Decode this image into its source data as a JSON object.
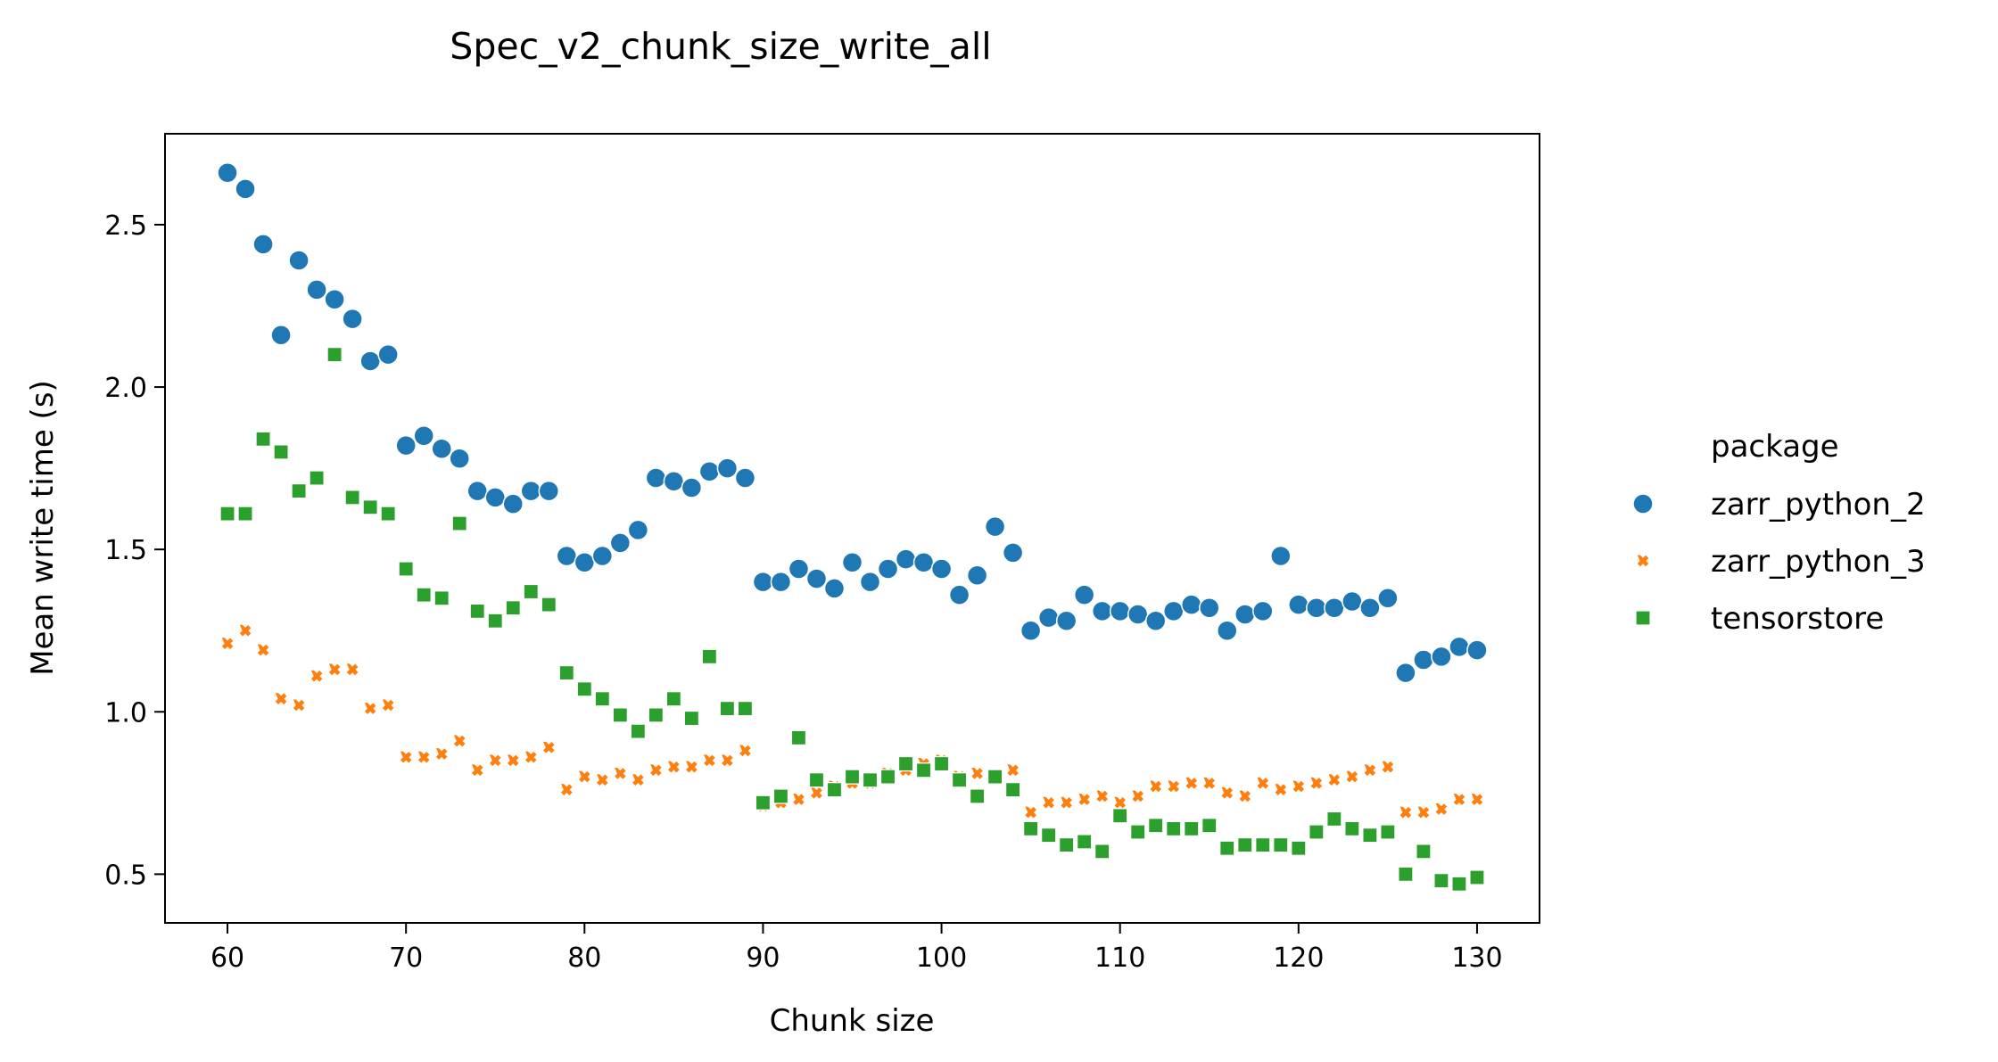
{
  "chart_data": {
    "type": "scatter",
    "title": "Spec_v2_chunk_size_write_all",
    "xlabel": "Chunk size",
    "ylabel": "Mean write time (s)",
    "xlim": [
      56.5,
      133.5
    ],
    "ylim": [
      0.35,
      2.78
    ],
    "xticks": [
      60,
      70,
      80,
      90,
      100,
      110,
      120,
      130
    ],
    "yticks": [
      0.5,
      1.0,
      1.5,
      2.0,
      2.5
    ],
    "grid": false,
    "legend": {
      "title": "package",
      "placement": "right"
    },
    "x": [
      60,
      61,
      62,
      63,
      64,
      65,
      66,
      67,
      68,
      69,
      70,
      71,
      72,
      73,
      74,
      75,
      76,
      77,
      78,
      79,
      80,
      81,
      82,
      83,
      84,
      85,
      86,
      87,
      88,
      89,
      90,
      91,
      92,
      93,
      94,
      95,
      96,
      97,
      98,
      99,
      100,
      101,
      102,
      103,
      104,
      105,
      106,
      107,
      108,
      109,
      110,
      111,
      112,
      113,
      114,
      115,
      116,
      117,
      118,
      119,
      120,
      121,
      122,
      123,
      124,
      125,
      126,
      127,
      128,
      129,
      130
    ],
    "series": [
      {
        "name": "zarr_python_2",
        "color": "#1f77b4",
        "marker": "circle",
        "values": [
          2.66,
          2.61,
          2.44,
          2.16,
          2.39,
          2.3,
          2.27,
          2.21,
          2.08,
          2.1,
          1.82,
          1.85,
          1.81,
          1.78,
          1.68,
          1.66,
          1.64,
          1.68,
          1.68,
          1.48,
          1.46,
          1.48,
          1.52,
          1.56,
          1.72,
          1.71,
          1.69,
          1.74,
          1.75,
          1.72,
          1.4,
          1.4,
          1.44,
          1.41,
          1.38,
          1.46,
          1.4,
          1.44,
          1.47,
          1.46,
          1.44,
          1.36,
          1.42,
          1.57,
          1.49,
          1.25,
          1.29,
          1.28,
          1.36,
          1.31,
          1.31,
          1.3,
          1.28,
          1.31,
          1.33,
          1.32,
          1.25,
          1.3,
          1.31,
          1.48,
          1.33,
          1.32,
          1.32,
          1.34,
          1.32,
          1.35,
          1.12,
          1.16,
          1.17,
          1.2,
          1.19
        ]
      },
      {
        "name": "zarr_python_3",
        "color": "#ff7f0e",
        "marker": "x",
        "values": [
          1.21,
          1.25,
          1.19,
          1.04,
          1.02,
          1.11,
          1.13,
          1.13,
          1.01,
          1.02,
          0.86,
          0.86,
          0.87,
          0.91,
          0.82,
          0.85,
          0.85,
          0.86,
          0.89,
          0.76,
          0.8,
          0.79,
          0.81,
          0.79,
          0.82,
          0.83,
          0.83,
          0.85,
          0.85,
          0.88,
          0.71,
          0.72,
          0.73,
          0.75,
          0.77,
          0.78,
          0.78,
          0.81,
          0.82,
          0.84,
          0.85,
          0.8,
          0.81,
          0.8,
          0.82,
          0.69,
          0.72,
          0.72,
          0.73,
          0.74,
          0.72,
          0.74,
          0.77,
          0.77,
          0.78,
          0.78,
          0.75,
          0.74,
          0.78,
          0.76,
          0.77,
          0.78,
          0.79,
          0.8,
          0.82,
          0.83,
          0.69,
          0.69,
          0.7,
          0.73,
          0.73
        ]
      },
      {
        "name": "tensorstore",
        "color": "#2ca02c",
        "marker": "square",
        "values": [
          1.61,
          1.61,
          1.84,
          1.8,
          1.68,
          1.72,
          2.1,
          1.66,
          1.63,
          1.61,
          1.44,
          1.36,
          1.35,
          1.58,
          1.31,
          1.28,
          1.32,
          1.37,
          1.33,
          1.12,
          1.07,
          1.04,
          0.99,
          0.94,
          0.99,
          1.04,
          0.98,
          1.17,
          1.01,
          1.01,
          0.72,
          0.74,
          0.92,
          0.79,
          0.76,
          0.8,
          0.79,
          0.8,
          0.84,
          0.82,
          0.84,
          0.79,
          0.74,
          0.8,
          0.76,
          0.64,
          0.62,
          0.59,
          0.6,
          0.57,
          0.68,
          0.63,
          0.65,
          0.64,
          0.64,
          0.65,
          0.58,
          0.59,
          0.59,
          0.59,
          0.58,
          0.63,
          0.67,
          0.64,
          0.62,
          0.63,
          0.5,
          0.57,
          0.48,
          0.47,
          0.49
        ]
      }
    ]
  }
}
